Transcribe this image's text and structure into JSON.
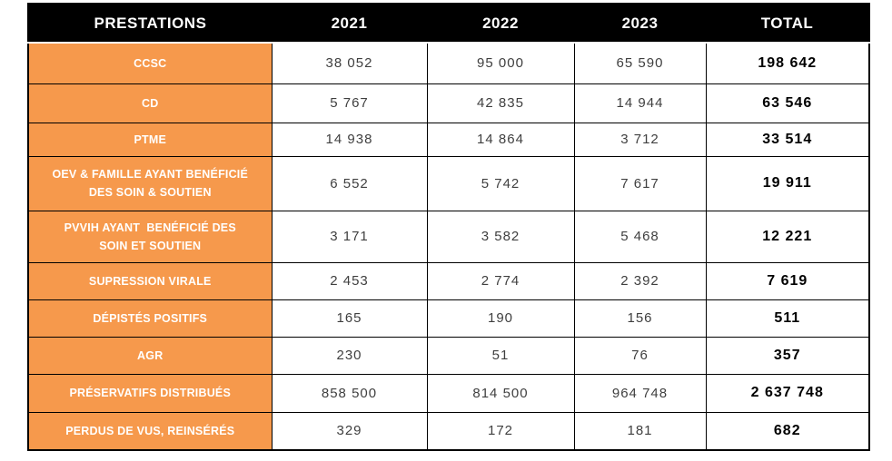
{
  "table": {
    "columns": [
      "PRESTATIONS",
      "2021",
      "2022",
      "2023",
      "TOTAL"
    ],
    "rows": [
      {
        "label": "CCSC",
        "values": [
          "38 052",
          "95 000",
          "65 590"
        ],
        "total": "198 642"
      },
      {
        "label": "CD",
        "values": [
          "5 767",
          "42 835",
          "14 944"
        ],
        "total": "63 546"
      },
      {
        "label": "PTME",
        "values": [
          "14 938",
          "14 864",
          "3 712"
        ],
        "total": "33 514"
      },
      {
        "label": "OEV & FAMILLE AYANT BENÉFICIÉ\nDES SOIN & SOUTIEN",
        "values": [
          "6 552",
          "5 742",
          "7 617"
        ],
        "total": "19 911"
      },
      {
        "label": "PVVIH AYANT  BENÉFICIÉ DES\nSOIN ET SOUTIEN",
        "values": [
          "3 171",
          "3 582",
          "5 468"
        ],
        "total": "12 221"
      },
      {
        "label": "SUPRESSION VIRALE",
        "values": [
          "2 453",
          "2 774",
          "2 392"
        ],
        "total": "7 619"
      },
      {
        "label": "DÉPISTÉS POSITIFS",
        "values": [
          "165",
          "190",
          "156"
        ],
        "total": "511"
      },
      {
        "label": "AGR",
        "values": [
          "230",
          "51",
          "76"
        ],
        "total": "357"
      },
      {
        "label": "PRÉSERVATIFS DISTRIBUÉS",
        "values": [
          "858 500",
          "814 500",
          "964 748"
        ],
        "total": "2 637 748"
      },
      {
        "label": "PERDUS DE VUS, REINSÉRÉS",
        "values": [
          "329",
          "172",
          "181"
        ],
        "total": "682"
      }
    ]
  },
  "chart_data": {
    "type": "table",
    "title": "",
    "categories": [
      "CCSC",
      "CD",
      "PTME",
      "OEV & FAMILLE AYANT BENÉFICIÉ DES SOIN & SOUTIEN",
      "PVVIH AYANT BENÉFICIÉ DES SOIN ET SOUTIEN",
      "SUPRESSION VIRALE",
      "DÉPISTÉS POSITIFS",
      "AGR",
      "PRÉSERVATIFS DISTRIBUÉS",
      "PERDUS DE VUS, REINSÉRÉS"
    ],
    "series": [
      {
        "name": "2021",
        "values": [
          38052,
          5767,
          14938,
          6552,
          3171,
          2453,
          165,
          230,
          858500,
          329
        ]
      },
      {
        "name": "2022",
        "values": [
          95000,
          42835,
          14864,
          5742,
          3582,
          2774,
          190,
          51,
          814500,
          172
        ]
      },
      {
        "name": "2023",
        "values": [
          65590,
          14944,
          3712,
          7617,
          5468,
          2392,
          156,
          76,
          964748,
          181
        ]
      },
      {
        "name": "TOTAL",
        "values": [
          198642,
          63546,
          33514,
          19911,
          12221,
          7619,
          511,
          357,
          2637748,
          682
        ]
      }
    ]
  },
  "colors": {
    "accent_orange": "#F6994C",
    "header_bg": "#000000",
    "value_text": "#3F3F3F"
  }
}
